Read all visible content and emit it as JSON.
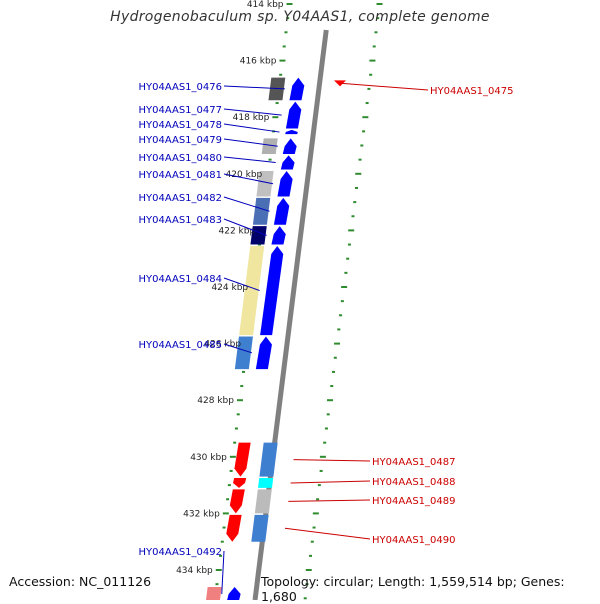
{
  "title": "Hydrogenobaculum sp. Y04AAS1, complete genome",
  "footer": {
    "accession": "Accession: NC_011126",
    "summary": "Topology: circular; Length: 1,559,514 bp; Genes: 1,680"
  },
  "colors": {
    "forward_gene": "#0000ff",
    "reverse_gene": "#ff0000",
    "forward_label": "#0000bb",
    "reverse_label": "#cc0000",
    "tick": "#2e8b2e",
    "backbone": "#808080"
  },
  "ruler_labels": [
    {
      "kbp": 414,
      "label": "414 kbp"
    },
    {
      "kbp": 416,
      "label": "416 kbp"
    },
    {
      "kbp": 418,
      "label": "418 kbp"
    },
    {
      "kbp": 420,
      "label": "420 kbp"
    },
    {
      "kbp": 422,
      "label": "422 kbp"
    },
    {
      "kbp": 424,
      "label": "424 kbp"
    },
    {
      "kbp": 426,
      "label": "426 kbp"
    },
    {
      "kbp": 428,
      "label": "428 kbp"
    },
    {
      "kbp": 430,
      "label": "430 kbp"
    },
    {
      "kbp": 432,
      "label": "432 kbp"
    },
    {
      "kbp": 434,
      "label": "434 kbp"
    }
  ],
  "forward_genes": [
    {
      "name": "HY04AAS1_0476",
      "start_kbp": 416.6,
      "end_kbp": 417.4
    },
    {
      "name": "HY04AAS1_0477",
      "start_kbp": 417.45,
      "end_kbp": 418.4
    },
    {
      "name": "HY04AAS1_0478",
      "start_kbp": 418.45,
      "end_kbp": 418.6
    },
    {
      "name": "HY04AAS1_0479",
      "start_kbp": 418.75,
      "end_kbp": 419.3
    },
    {
      "name": "HY04AAS1_0480",
      "start_kbp": 419.35,
      "end_kbp": 419.85
    },
    {
      "name": "HY04AAS1_0481",
      "start_kbp": 419.9,
      "end_kbp": 420.8
    },
    {
      "name": "HY04AAS1_0482",
      "start_kbp": 420.85,
      "end_kbp": 421.8
    },
    {
      "name": "HY04AAS1_0483",
      "start_kbp": 421.85,
      "end_kbp": 422.5
    },
    {
      "name": "HY04AAS1_0484",
      "start_kbp": 422.55,
      "end_kbp": 425.7
    },
    {
      "name": "HY04AAS1_0485",
      "start_kbp": 425.75,
      "end_kbp": 426.9
    },
    {
      "name": "HY04AAS1_0492",
      "start_kbp": 434.6,
      "end_kbp": 435.1
    }
  ],
  "reverse_genes": [
    {
      "name": "HY04AAS1_0475",
      "start_kbp": 416.7,
      "end_kbp": 416.9
    },
    {
      "name": "HY04AAS1_0487",
      "start_kbp": 429.5,
      "end_kbp": 430.7
    },
    {
      "name": "HY04AAS1_0488",
      "start_kbp": 430.75,
      "end_kbp": 431.1
    },
    {
      "name": "HY04AAS1_0489",
      "start_kbp": 431.15,
      "end_kbp": 432.0
    },
    {
      "name": "HY04AAS1_0490",
      "start_kbp": 432.05,
      "end_kbp": 433.0
    }
  ],
  "cog_blocks": [
    {
      "start_kbp": 416.6,
      "end_kbp": 417.4,
      "color": "#555555"
    },
    {
      "start_kbp": 418.75,
      "end_kbp": 419.3,
      "color": "#b0b0b0"
    },
    {
      "start_kbp": 419.9,
      "end_kbp": 420.8,
      "color": "#c0c0c0"
    },
    {
      "start_kbp": 420.85,
      "end_kbp": 421.8,
      "color": "#4a6fb5"
    },
    {
      "start_kbp": 421.85,
      "end_kbp": 422.5,
      "color": "#00006a"
    },
    {
      "start_kbp": 422.55,
      "end_kbp": 425.7,
      "color": "#f0e6a0"
    },
    {
      "start_kbp": 425.75,
      "end_kbp": 426.9,
      "color": "#3f7fcf"
    },
    {
      "start_kbp": 434.6,
      "end_kbp": 435.1,
      "color": "#f08080"
    },
    {
      "start_kbp": 429.5,
      "end_kbp": 430.7,
      "color": "#3f7fcf"
    },
    {
      "start_kbp": 430.75,
      "end_kbp": 431.1,
      "color": "#00ffff"
    },
    {
      "start_kbp": 431.15,
      "end_kbp": 432.0,
      "color": "#bbbbbb"
    },
    {
      "start_kbp": 432.05,
      "end_kbp": 433.0,
      "color": "#3f7fcf"
    }
  ]
}
